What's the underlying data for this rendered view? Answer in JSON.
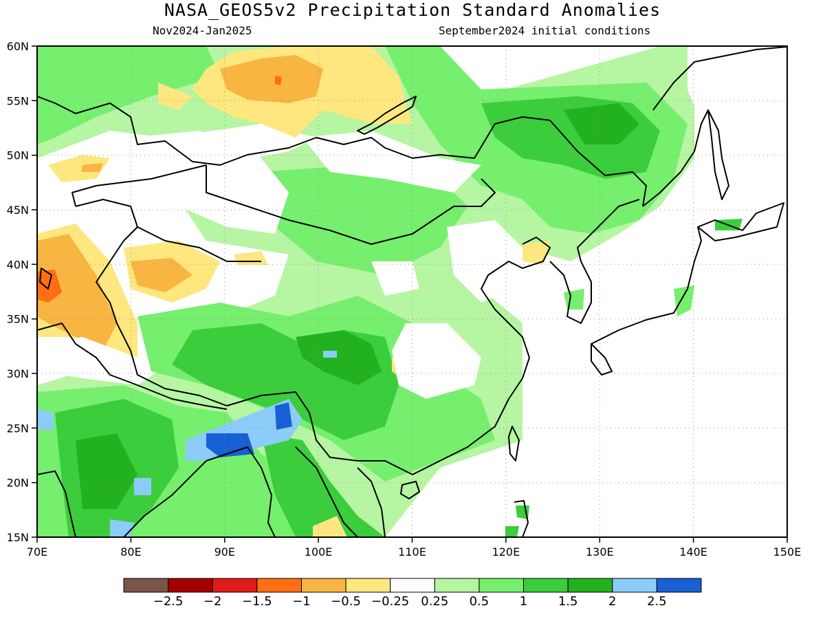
{
  "title": "NASA_GEOS5v2 Precipitation Standard Anomalies",
  "subtitle_left": "Nov2024-Jan2025",
  "subtitle_right": "September2024 initial conditions",
  "axes": {
    "lon_ticks": [
      "70E",
      "80E",
      "90E",
      "100E",
      "110E",
      "120E",
      "130E",
      "140E",
      "150E"
    ],
    "lat_ticks": [
      "60N",
      "55N",
      "50N",
      "45N",
      "40N",
      "35N",
      "30N",
      "25N",
      "20N",
      "15N"
    ],
    "lon_range": [
      70,
      150
    ],
    "lat_range": [
      15,
      60
    ],
    "grid": "dotted"
  },
  "colorbar": {
    "colors": [
      "#7a5548",
      "#a50000",
      "#e01b1b",
      "#ff6e12",
      "#f8b541",
      "#fde77e",
      "#ffffff",
      "#b6f5a2",
      "#76ee6e",
      "#3ccd3c",
      "#23b21f",
      "#8cccf8",
      "#1760d5"
    ],
    "labels": [
      "-2.5",
      "-2",
      "-1.5",
      "-1",
      "-0.5",
      "-0.25",
      "0.25",
      "0.5",
      "1",
      "1.5",
      "2",
      "2.5"
    ]
  },
  "legend_colors": {
    "dry_strong": "#ff6e12",
    "dry": "#f8b541",
    "dry_weak": "#fde77e",
    "wet_weak": "#b6f5a2",
    "wet": "#76ee6e",
    "wet_more": "#3ccd3c",
    "wet_strong": "#23b21f",
    "very_wet": "#8cccf8",
    "extreme_wet": "#1760d5"
  }
}
